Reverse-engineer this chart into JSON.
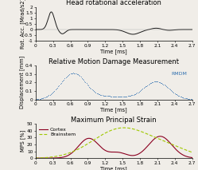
{
  "title1": "Head rotational acceleration",
  "title2": "Relative Motion Damage Measurement",
  "title3": "Maximum Principal Strain",
  "ylabel1": "Rot. Acc. [Mrad/s2]",
  "ylabel2": "Displacement [mm]",
  "ylabel3": "MPS [%]",
  "xlabel": "Time [ms]",
  "xlim": [
    0,
    2.7
  ],
  "ylim1": [
    -1.0,
    2.0
  ],
  "ylim2": [
    0,
    0.4
  ],
  "ylim3": [
    0,
    50
  ],
  "yticks1": [
    -1,
    -0.5,
    0,
    0.5,
    1,
    1.5,
    2
  ],
  "yticks2": [
    0,
    0.1,
    0.2,
    0.3,
    0.4
  ],
  "yticks3": [
    0,
    10,
    20,
    30,
    40,
    50
  ],
  "xticks": [
    0,
    0.3,
    0.6,
    0.9,
    1.2,
    1.5,
    1.8,
    2.1,
    2.4,
    2.7
  ],
  "color_acc": "#1a1a1a",
  "color_rmdm": "#3070b0",
  "color_cortex": "#8b0020",
  "color_brainstem": "#a0c800",
  "bg_color": "#f0ede8",
  "title_fontsize": 6.0,
  "label_fontsize": 4.8,
  "tick_fontsize": 4.2,
  "legend_fontsize": 4.5
}
